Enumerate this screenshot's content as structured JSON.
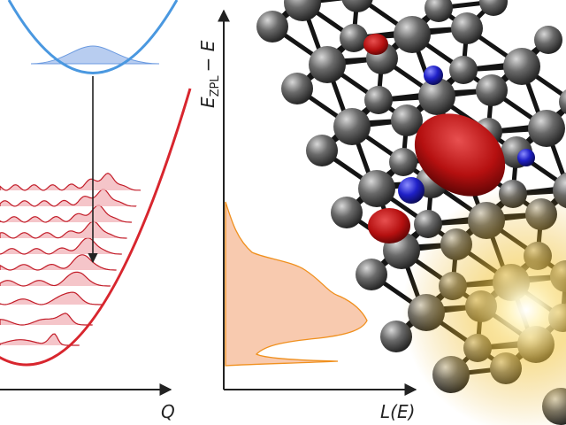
{
  "labels": {
    "y_axis": {
      "main": "E",
      "sub": "ZPL",
      "rest": "− E"
    },
    "x_left": "Q",
    "x_right": "L(E)"
  }
}
